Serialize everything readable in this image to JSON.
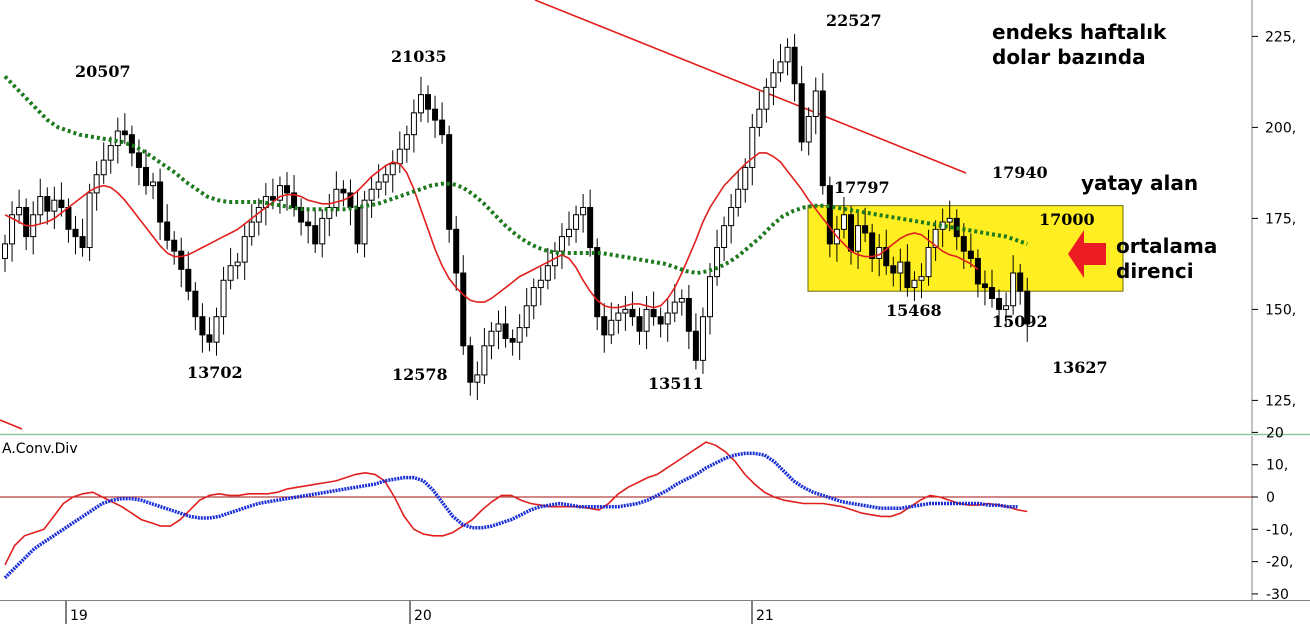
{
  "chart_data": [
    {
      "type": "candlestick",
      "title": "endeks haftalık dolar bazında",
      "x_labels": [
        "19",
        "20",
        "21"
      ],
      "y_ticks": [
        "225,",
        "200,",
        "175,",
        "150,",
        "125,"
      ],
      "ylim": [
        117,
        232
      ],
      "price_labels": [
        "20507",
        "13702",
        "21035",
        "12578",
        "13511",
        "22527",
        "17797",
        "17940",
        "15468",
        "17000",
        "15092",
        "13627"
      ],
      "annotations": [
        "endeks haftalık",
        "dolar bazında",
        "yatay alan",
        "ortalama",
        "direnci"
      ],
      "horizontal_zone": [
        155,
        178.5
      ],
      "series": [
        {
          "name": "close",
          "color": "#000000",
          "values": [
            168,
            176,
            178,
            170,
            176,
            181,
            177,
            180,
            178,
            172,
            170,
            167,
            182,
            187,
            191,
            195,
            199,
            198,
            193,
            189,
            184,
            185,
            174,
            169,
            166,
            161,
            155,
            148,
            143,
            141,
            148,
            158,
            162,
            163,
            170,
            174,
            178,
            181,
            180,
            184,
            182,
            178,
            174,
            173,
            168,
            175,
            178,
            183,
            182,
            178,
            168,
            180,
            183,
            185,
            187,
            190,
            194,
            198,
            204,
            209,
            205,
            202,
            198,
            172,
            160,
            140,
            130,
            132,
            140,
            144,
            146,
            142,
            141,
            145,
            151,
            156,
            158,
            162,
            166,
            170,
            172,
            176,
            178,
            167,
            148,
            143,
            147,
            149,
            150,
            148,
            144,
            150,
            148,
            146,
            149,
            152,
            153,
            144,
            136,
            148,
            159,
            167,
            173,
            178,
            183,
            189,
            200,
            205,
            211,
            215,
            218,
            222,
            212,
            196,
            203,
            210,
            184,
            168,
            172,
            176,
            166,
            173,
            171,
            164,
            167,
            162,
            160,
            163,
            156,
            158,
            159,
            167,
            172,
            174,
            175,
            170,
            166,
            164,
            157,
            156,
            153,
            150,
            151,
            160,
            155,
            146
          ]
        },
        {
          "name": "fast_ma",
          "color": "#e0201e",
          "values": [
            176,
            175,
            174,
            173,
            173,
            173.5,
            174,
            175,
            176.5,
            178,
            179.5,
            181,
            182.5,
            183.5,
            184,
            183.5,
            182,
            180,
            177.5,
            175,
            172.5,
            170,
            167.5,
            165.5,
            164.5,
            164.5,
            165,
            166,
            167,
            168,
            169,
            170,
            171,
            172,
            173.5,
            175,
            176.5,
            178,
            179.5,
            181,
            181.5,
            181.5,
            181,
            180,
            179.5,
            179,
            179,
            179.5,
            180,
            181,
            182.5,
            184.5,
            186.5,
            188,
            189.5,
            190.5,
            190,
            187.5,
            183,
            177.5,
            172,
            166.5,
            162,
            158.5,
            156,
            154,
            152.5,
            152,
            152,
            153,
            154.5,
            156,
            157.5,
            159,
            160,
            161,
            162,
            163,
            164,
            165,
            164,
            161.5,
            158,
            155,
            152.5,
            151,
            150.5,
            150.5,
            151,
            151.5,
            151.5,
            151,
            150.5,
            151,
            153,
            156,
            160,
            164.5,
            169,
            174,
            178,
            181,
            184,
            186,
            188,
            190,
            191.5,
            193,
            193,
            192,
            190.5,
            188,
            185.5,
            183,
            180,
            177.5,
            175,
            172.5,
            170,
            168,
            166,
            165,
            164.5,
            164.5,
            165,
            166.5,
            168,
            169.5,
            170.5,
            171,
            170.5,
            169,
            167.5,
            166,
            165,
            164.5,
            163.5,
            162.5,
            161
          ]
        },
        {
          "name": "slow_ma",
          "color": "#1e7a1e",
          "values": [
            214,
            211,
            208,
            205,
            202,
            200,
            199,
            198,
            197.5,
            197,
            196.5,
            196,
            195,
            193.5,
            191.5,
            189.5,
            187.5,
            185,
            183,
            181,
            180,
            179.5,
            179.5,
            179.5,
            179.5,
            179,
            178.5,
            178,
            177.5,
            177.5,
            177.5,
            177.5,
            177.5,
            178,
            178.5,
            179,
            180,
            181,
            182,
            183,
            184,
            184.5,
            184.5,
            183.5,
            181.5,
            179,
            176,
            173,
            170.5,
            168.5,
            167,
            166,
            165.5,
            165.5,
            165.5,
            165.5,
            165.5,
            165,
            164.5,
            164,
            163.5,
            163,
            162.5,
            161.5,
            160.5,
            160,
            160.5,
            161.5,
            163,
            165,
            167.5,
            170,
            173,
            175.5,
            177,
            178,
            178.5,
            178.5,
            178,
            177.5,
            177,
            176.5,
            176,
            175.5,
            175,
            174.5,
            174,
            173.5,
            173,
            172.5,
            172,
            171.5,
            171,
            170.5,
            170,
            169,
            168
          ]
        }
      ]
    },
    {
      "type": "line",
      "title": "A.Conv.Div",
      "y_ticks": [
        "20",
        "10,",
        "0",
        "-10,",
        "-20,",
        "-30"
      ],
      "ylim": [
        -30,
        20
      ],
      "series": [
        {
          "name": "macd",
          "color": "#e0201e",
          "values": [
            -21,
            -15,
            -12,
            -11,
            -10,
            -6,
            -2,
            0,
            1,
            1.5,
            0,
            -1.5,
            -3,
            -5,
            -7,
            -8,
            -9,
            -9,
            -7,
            -4,
            -1,
            0.5,
            1,
            0.5,
            0.5,
            1,
            1,
            1,
            1.5,
            2.5,
            3,
            3.5,
            4,
            4.5,
            5,
            6,
            7,
            7.5,
            7,
            5,
            0,
            -6,
            -10,
            -11.5,
            -12,
            -12,
            -11,
            -9,
            -7,
            -4,
            -1.5,
            0.5,
            0.5,
            -1,
            -2,
            -2.5,
            -3,
            -3,
            -3,
            -3,
            -3.5,
            -4,
            -2,
            1,
            3,
            4.5,
            6,
            7,
            9,
            11,
            13,
            15,
            17,
            16,
            14,
            11,
            7,
            4,
            1.5,
            0,
            -1,
            -1.5,
            -2,
            -2,
            -2,
            -2.5,
            -3,
            -4,
            -5,
            -5.5,
            -6,
            -6,
            -5,
            -3,
            -1,
            0.5,
            0,
            -1,
            -2,
            -2.5,
            -2.5,
            -2,
            -2.5,
            -3,
            -4,
            -4.5
          ]
        },
        {
          "name": "signal",
          "color": "#1a2ed6",
          "values": [
            -25,
            -22,
            -19,
            -16,
            -14,
            -12,
            -10,
            -8,
            -6,
            -4,
            -2,
            -1,
            -0.5,
            -0.5,
            -1,
            -2,
            -3,
            -4,
            -5,
            -6,
            -6.5,
            -6.5,
            -6,
            -5,
            -4,
            -3,
            -2,
            -1.5,
            -1,
            -0.5,
            0,
            0.5,
            1,
            1.5,
            2,
            2.5,
            3,
            3.5,
            4,
            5,
            5.5,
            6,
            6,
            5,
            2,
            -2,
            -6,
            -8.5,
            -9.5,
            -9.5,
            -9,
            -8,
            -7,
            -5.5,
            -4,
            -3,
            -2.5,
            -2,
            -2.5,
            -3,
            -3,
            -3,
            -3,
            -3,
            -2.5,
            -2,
            -1,
            0.5,
            2,
            4,
            5.5,
            7,
            9,
            10.5,
            12,
            13,
            13.5,
            13.5,
            13,
            11,
            8,
            5,
            3,
            1.5,
            0.5,
            -0.5,
            -1.5,
            -2,
            -2.5,
            -3,
            -3.5,
            -3.5,
            -3.5,
            -3,
            -2.5,
            -2,
            -2,
            -2,
            -2,
            -2,
            -2,
            -2.5,
            -2.5,
            -3,
            -3
          ]
        }
      ]
    }
  ]
}
